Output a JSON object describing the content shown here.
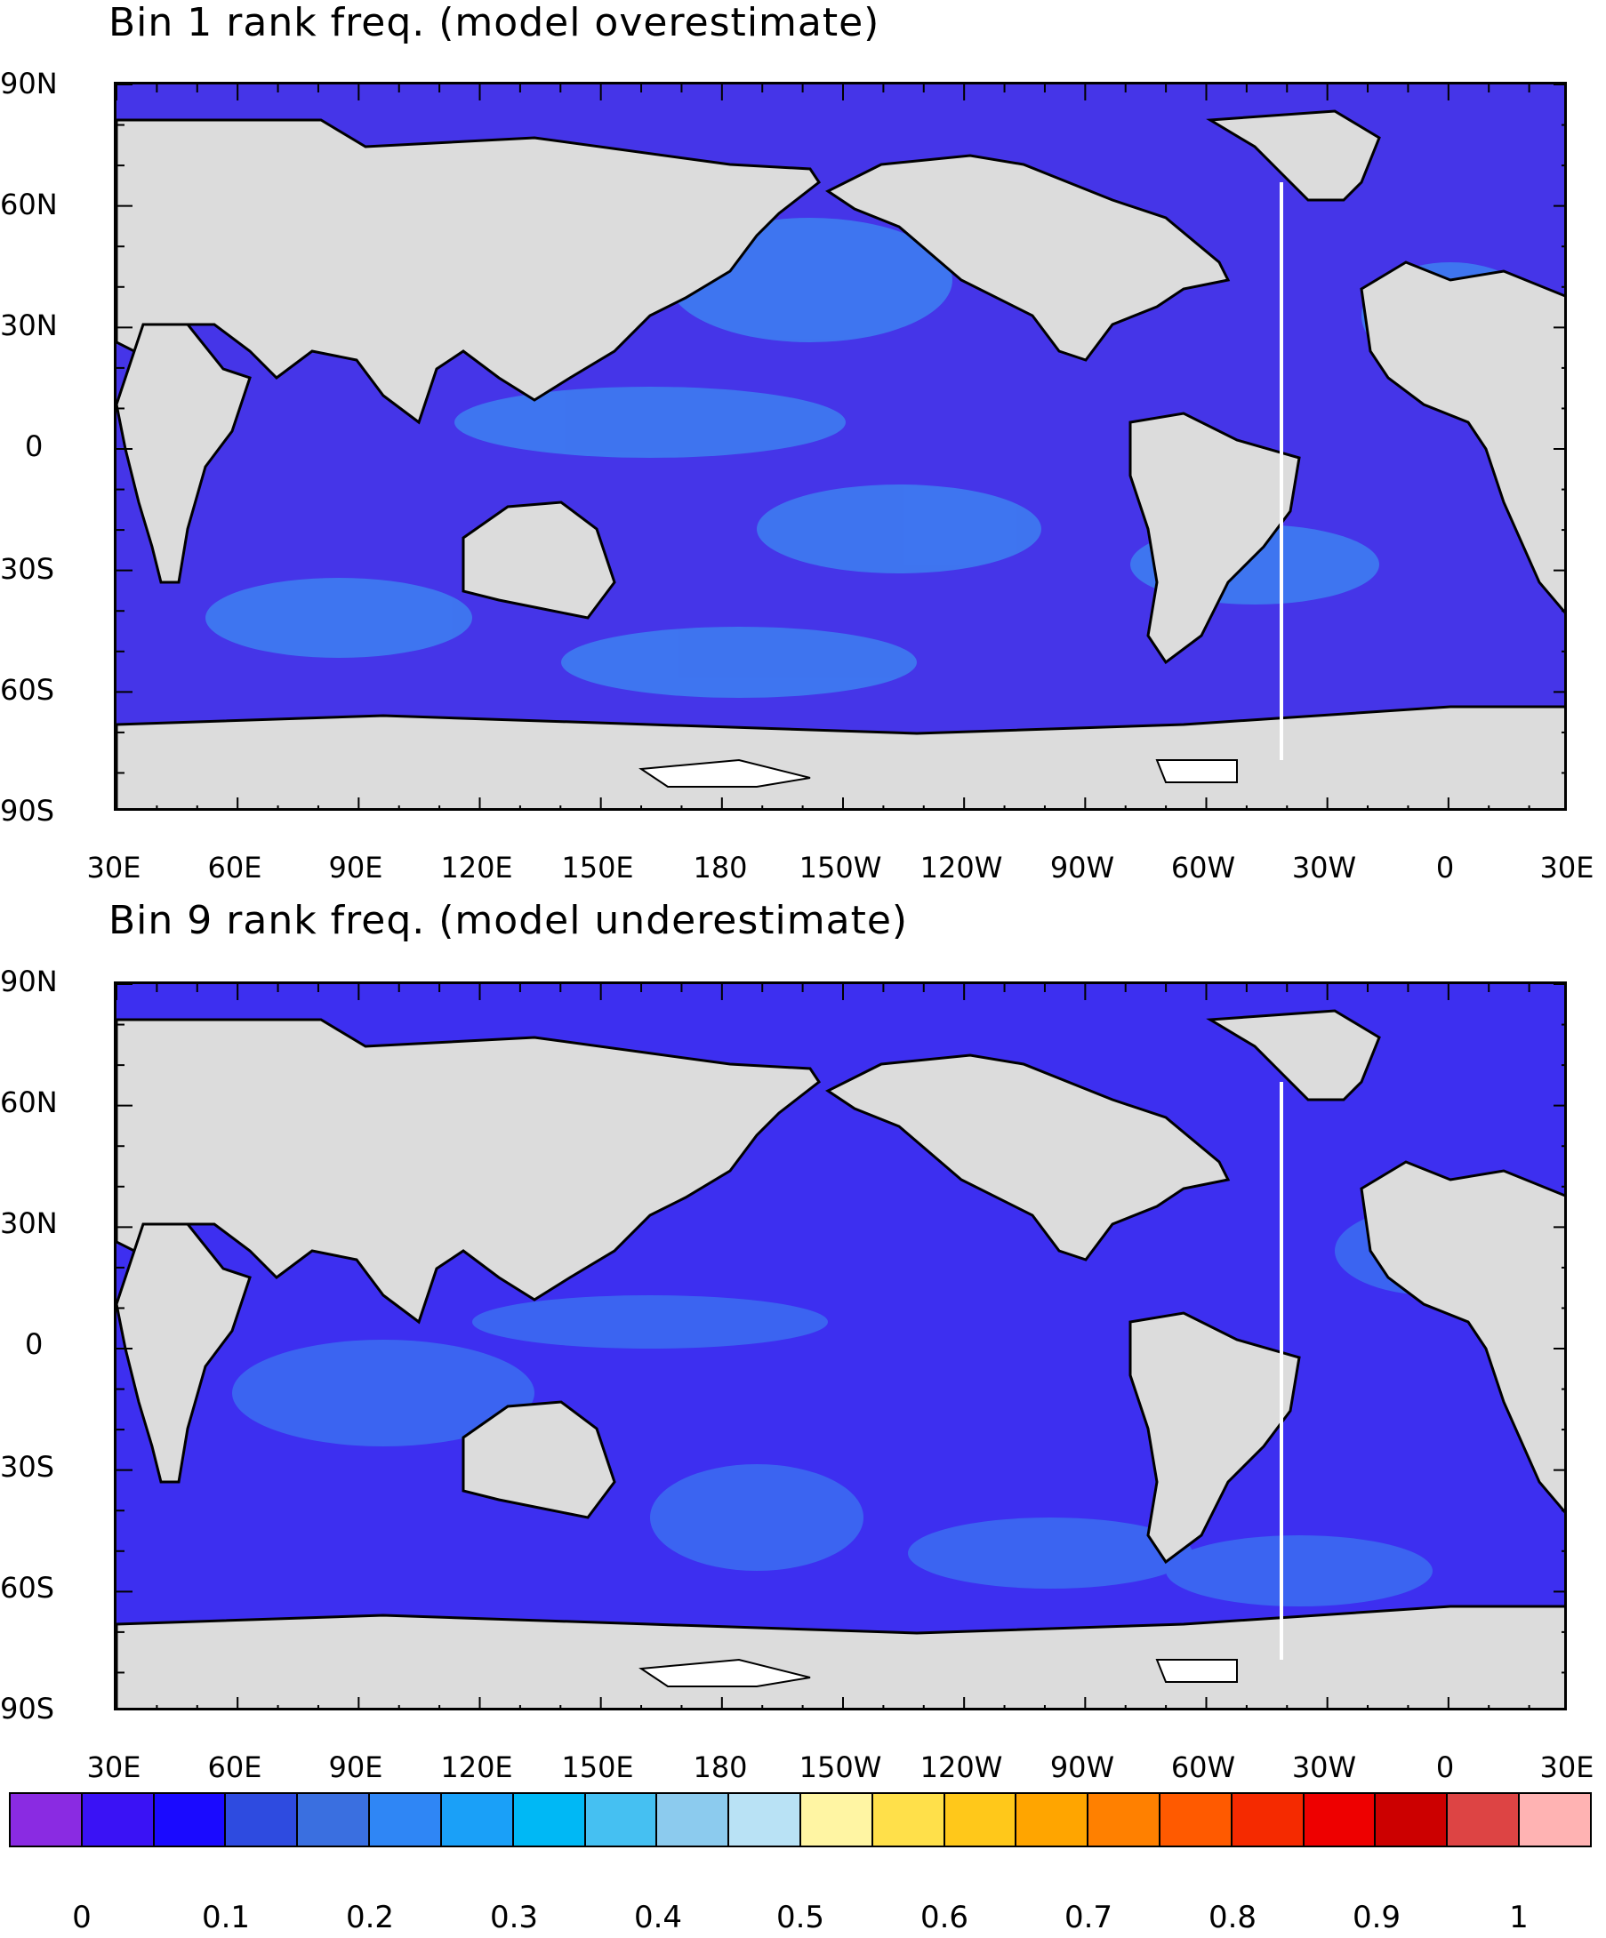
{
  "panels": [
    {
      "title": "Bin 1 rank freq. (model overestimate)",
      "lat_labels": [
        "90N",
        "60N",
        "30N",
        "0",
        "30S",
        "60S",
        "90S"
      ],
      "lon_labels": [
        "30E",
        "60E",
        "90E",
        "120E",
        "150E",
        "180",
        "150W",
        "120W",
        "90W",
        "60W",
        "30W",
        "0",
        "30E"
      ],
      "ocean_color": "#4535e8",
      "highlight_color": "#39a9f5"
    },
    {
      "title": "Bin 9 rank freq. (model underestimate)",
      "lat_labels": [
        "90N",
        "60N",
        "30N",
        "0",
        "30S",
        "60S",
        "90S"
      ],
      "lon_labels": [
        "30E",
        "60E",
        "90E",
        "120E",
        "150E",
        "180",
        "150W",
        "120W",
        "90W",
        "60W",
        "30W",
        "0",
        "30E"
      ],
      "ocean_color": "#3d2ff0",
      "highlight_color": "#3a9af2"
    }
  ],
  "colorbar": {
    "colors": [
      "#8a2be2",
      "#3a12f5",
      "#1a0aff",
      "#2e4be0",
      "#3a6fe0",
      "#2f86f5",
      "#1aa0f8",
      "#00b8f5",
      "#45c0f2",
      "#8ccbee",
      "#b9e2f5",
      "#fff5a3",
      "#ffe04a",
      "#ffc81a",
      "#ffa500",
      "#ff8000",
      "#ff5a00",
      "#f52a00",
      "#ee0000",
      "#cc0000",
      "#dd4444",
      "#ffb3b3"
    ],
    "labels": [
      "0",
      "0.1",
      "0.2",
      "0.3",
      "0.4",
      "0.5",
      "0.6",
      "0.7",
      "0.8",
      "0.9",
      "1"
    ]
  },
  "land_color": "#dcdcdc"
}
